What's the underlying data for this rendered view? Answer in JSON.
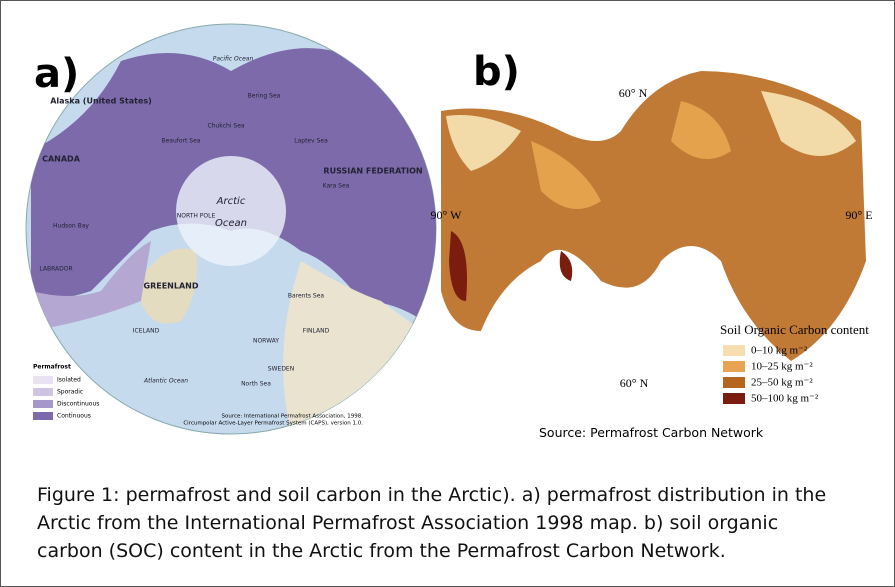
{
  "panels": [
    {
      "label": "a)",
      "map_labels": [
        "Pacific Ocean",
        "Alaska (United States)",
        "CANADA",
        "RUSSIAN FEDERATION",
        "GREENLAND",
        "Arctic",
        "Ocean",
        "NORTH POLE",
        "ICELAND",
        "NORWAY",
        "SWEDEN",
        "FINLAND",
        "Atlantic Ocean",
        "Hudson Bay",
        "LABRADOR",
        "Beaufort Sea",
        "Barents Sea",
        "Laptev Sea",
        "Kara Sea",
        "Bering Sea",
        "Chukchi Sea",
        "North Sea"
      ],
      "legend": {
        "title": "Permafrost",
        "items": [
          "Isolated",
          "Sporadic",
          "Discontinuous",
          "Continuous"
        ]
      },
      "source": [
        "Source: International Permafrost Association, 1998.",
        "Circumpolar Active-Layer Permafrost System (CAPS), version 1.0."
      ]
    },
    {
      "label": "b)",
      "map_labels": [
        "60° N",
        "90° W",
        "90° E",
        "60° N"
      ],
      "legend": {
        "title": "Soil Organic Carbon content",
        "items": [
          "0–10 kg m⁻²",
          "10–25 kg m⁻²",
          "25–50 kg m⁻²",
          "50–100 kg m⁻²"
        ]
      },
      "source": "Source: Permafrost Carbon Network"
    }
  ],
  "caption": [
    "Figure 1: permafrost and soil carbon in the Arctic). a) permafrost distribution in the",
    "Arctic from the International Permafrost Association 1998 map. b) soil organic",
    "carbon (SOC) content in the Arctic from the Permafrost Carbon Network."
  ]
}
